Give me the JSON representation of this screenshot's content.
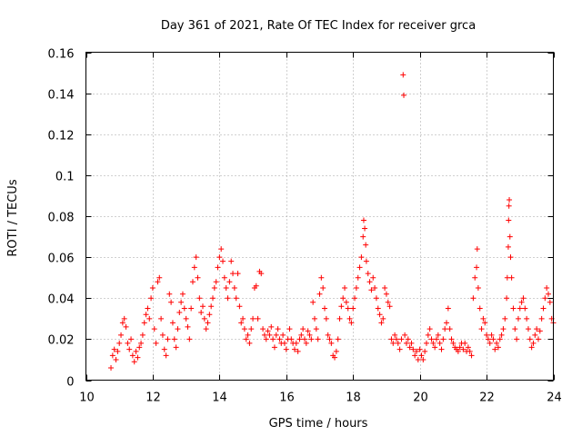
{
  "chart_data": {
    "type": "scatter",
    "title": "Day 361 of 2021, Rate Of TEC Index for receiver grca",
    "xlabel": "GPS time / hours",
    "ylabel": "ROTI / TECUs",
    "xlim": [
      10,
      24
    ],
    "ylim": [
      0,
      0.16
    ],
    "x_ticks": [
      10,
      12,
      14,
      16,
      18,
      20,
      22,
      24
    ],
    "x_tick_labels": [
      "10",
      "12",
      "14",
      "16",
      "18",
      "20",
      "22",
      "24"
    ],
    "y_ticks": [
      0,
      0.02,
      0.04,
      0.06,
      0.08,
      0.1,
      0.12,
      0.14,
      0.16
    ],
    "y_tick_labels": [
      "0",
      "0.02",
      "0.04",
      "0.06",
      "0.08",
      "0.1",
      "0.12",
      "0.14",
      "0.16"
    ],
    "grid": true,
    "marker": "+",
    "marker_color": "#ff0000",
    "series": [
      {
        "points": [
          [
            10.75,
            0.006
          ],
          [
            10.8,
            0.012
          ],
          [
            10.85,
            0.015
          ],
          [
            10.9,
            0.01
          ],
          [
            10.95,
            0.014
          ],
          [
            11.0,
            0.018
          ],
          [
            11.05,
            0.022
          ],
          [
            11.1,
            0.028
          ],
          [
            11.15,
            0.03
          ],
          [
            11.2,
            0.026
          ],
          [
            11.25,
            0.018
          ],
          [
            11.3,
            0.015
          ],
          [
            11.35,
            0.02
          ],
          [
            11.4,
            0.012
          ],
          [
            11.45,
            0.009
          ],
          [
            11.5,
            0.014
          ],
          [
            11.55,
            0.011
          ],
          [
            11.6,
            0.016
          ],
          [
            11.65,
            0.018
          ],
          [
            11.7,
            0.022
          ],
          [
            11.75,
            0.028
          ],
          [
            11.8,
            0.032
          ],
          [
            11.85,
            0.035
          ],
          [
            11.9,
            0.03
          ],
          [
            11.95,
            0.04
          ],
          [
            12.0,
            0.045
          ],
          [
            12.05,
            0.025
          ],
          [
            12.1,
            0.018
          ],
          [
            12.15,
            0.048
          ],
          [
            12.2,
            0.05
          ],
          [
            12.25,
            0.03
          ],
          [
            12.3,
            0.022
          ],
          [
            12.35,
            0.015
          ],
          [
            12.4,
            0.012
          ],
          [
            12.45,
            0.02
          ],
          [
            12.5,
            0.042
          ],
          [
            12.55,
            0.038
          ],
          [
            12.6,
            0.028
          ],
          [
            12.65,
            0.02
          ],
          [
            12.7,
            0.016
          ],
          [
            12.75,
            0.025
          ],
          [
            12.8,
            0.033
          ],
          [
            12.85,
            0.038
          ],
          [
            12.9,
            0.042
          ],
          [
            12.95,
            0.035
          ],
          [
            13.0,
            0.03
          ],
          [
            13.05,
            0.026
          ],
          [
            13.1,
            0.02
          ],
          [
            13.15,
            0.035
          ],
          [
            13.2,
            0.048
          ],
          [
            13.25,
            0.055
          ],
          [
            13.3,
            0.06
          ],
          [
            13.35,
            0.05
          ],
          [
            13.4,
            0.04
          ],
          [
            13.45,
            0.033
          ],
          [
            13.5,
            0.036
          ],
          [
            13.55,
            0.03
          ],
          [
            13.6,
            0.025
          ],
          [
            13.65,
            0.028
          ],
          [
            13.7,
            0.032
          ],
          [
            13.75,
            0.036
          ],
          [
            13.8,
            0.04
          ],
          [
            13.85,
            0.045
          ],
          [
            13.9,
            0.048
          ],
          [
            13.95,
            0.055
          ],
          [
            14.0,
            0.06
          ],
          [
            14.05,
            0.064
          ],
          [
            14.1,
            0.058
          ],
          [
            14.15,
            0.05
          ],
          [
            14.2,
            0.045
          ],
          [
            14.25,
            0.04
          ],
          [
            14.3,
            0.048
          ],
          [
            14.35,
            0.058
          ],
          [
            14.4,
            0.052
          ],
          [
            14.45,
            0.045
          ],
          [
            14.5,
            0.04
          ],
          [
            14.55,
            0.052
          ],
          [
            14.6,
            0.036
          ],
          [
            14.65,
            0.028
          ],
          [
            14.7,
            0.03
          ],
          [
            14.75,
            0.025
          ],
          [
            14.8,
            0.02
          ],
          [
            14.85,
            0.022
          ],
          [
            14.9,
            0.018
          ],
          [
            14.95,
            0.025
          ],
          [
            15.0,
            0.03
          ],
          [
            15.05,
            0.045
          ],
          [
            15.1,
            0.046
          ],
          [
            15.15,
            0.03
          ],
          [
            15.2,
            0.053
          ],
          [
            15.25,
            0.052
          ],
          [
            15.3,
            0.025
          ],
          [
            15.35,
            0.022
          ],
          [
            15.4,
            0.02
          ],
          [
            15.45,
            0.024
          ],
          [
            15.5,
            0.022
          ],
          [
            15.55,
            0.026
          ],
          [
            15.6,
            0.02
          ],
          [
            15.65,
            0.016
          ],
          [
            15.7,
            0.022
          ],
          [
            15.75,
            0.025
          ],
          [
            15.8,
            0.02
          ],
          [
            15.85,
            0.018
          ],
          [
            15.9,
            0.022
          ],
          [
            15.95,
            0.018
          ],
          [
            16.0,
            0.015
          ],
          [
            16.05,
            0.02
          ],
          [
            16.1,
            0.025
          ],
          [
            16.15,
            0.02
          ],
          [
            16.2,
            0.018
          ],
          [
            16.25,
            0.015
          ],
          [
            16.3,
            0.018
          ],
          [
            16.35,
            0.014
          ],
          [
            16.4,
            0.02
          ],
          [
            16.45,
            0.022
          ],
          [
            16.5,
            0.025
          ],
          [
            16.55,
            0.02
          ],
          [
            16.6,
            0.018
          ],
          [
            16.65,
            0.024
          ],
          [
            16.7,
            0.022
          ],
          [
            16.75,
            0.02
          ],
          [
            16.8,
            0.038
          ],
          [
            16.85,
            0.03
          ],
          [
            16.9,
            0.025
          ],
          [
            16.95,
            0.02
          ],
          [
            17.0,
            0.042
          ],
          [
            17.05,
            0.05
          ],
          [
            17.1,
            0.045
          ],
          [
            17.15,
            0.035
          ],
          [
            17.2,
            0.03
          ],
          [
            17.25,
            0.022
          ],
          [
            17.3,
            0.02
          ],
          [
            17.35,
            0.018
          ],
          [
            17.4,
            0.012
          ],
          [
            17.45,
            0.011
          ],
          [
            17.5,
            0.014
          ],
          [
            17.55,
            0.02
          ],
          [
            17.6,
            0.03
          ],
          [
            17.65,
            0.036
          ],
          [
            17.7,
            0.04
          ],
          [
            17.75,
            0.045
          ],
          [
            17.8,
            0.038
          ],
          [
            17.85,
            0.035
          ],
          [
            17.9,
            0.03
          ],
          [
            17.95,
            0.028
          ],
          [
            18.0,
            0.035
          ],
          [
            18.05,
            0.04
          ],
          [
            18.1,
            0.045
          ],
          [
            18.15,
            0.05
          ],
          [
            18.2,
            0.055
          ],
          [
            18.25,
            0.06
          ],
          [
            18.3,
            0.07
          ],
          [
            18.32,
            0.078
          ],
          [
            18.35,
            0.074
          ],
          [
            18.38,
            0.066
          ],
          [
            18.4,
            0.058
          ],
          [
            18.45,
            0.052
          ],
          [
            18.5,
            0.048
          ],
          [
            18.55,
            0.044
          ],
          [
            18.6,
            0.05
          ],
          [
            18.65,
            0.045
          ],
          [
            18.7,
            0.04
          ],
          [
            18.75,
            0.035
          ],
          [
            18.8,
            0.032
          ],
          [
            18.85,
            0.028
          ],
          [
            18.9,
            0.03
          ],
          [
            18.95,
            0.045
          ],
          [
            19.0,
            0.042
          ],
          [
            19.05,
            0.038
          ],
          [
            19.1,
            0.036
          ],
          [
            19.15,
            0.02
          ],
          [
            19.2,
            0.018
          ],
          [
            19.25,
            0.022
          ],
          [
            19.3,
            0.02
          ],
          [
            19.35,
            0.018
          ],
          [
            19.4,
            0.015
          ],
          [
            19.45,
            0.02
          ],
          [
            19.5,
            0.149
          ],
          [
            19.52,
            0.139
          ],
          [
            19.55,
            0.022
          ],
          [
            19.6,
            0.018
          ],
          [
            19.65,
            0.02
          ],
          [
            19.7,
            0.016
          ],
          [
            19.75,
            0.018
          ],
          [
            19.8,
            0.015
          ],
          [
            19.85,
            0.012
          ],
          [
            19.9,
            0.014
          ],
          [
            19.95,
            0.01
          ],
          [
            20.0,
            0.015
          ],
          [
            20.05,
            0.012
          ],
          [
            20.1,
            0.01
          ],
          [
            20.15,
            0.014
          ],
          [
            20.2,
            0.018
          ],
          [
            20.25,
            0.022
          ],
          [
            20.3,
            0.025
          ],
          [
            20.35,
            0.02
          ],
          [
            20.4,
            0.018
          ],
          [
            20.45,
            0.016
          ],
          [
            20.5,
            0.02
          ],
          [
            20.55,
            0.022
          ],
          [
            20.6,
            0.018
          ],
          [
            20.65,
            0.015
          ],
          [
            20.7,
            0.02
          ],
          [
            20.75,
            0.025
          ],
          [
            20.8,
            0.028
          ],
          [
            20.85,
            0.035
          ],
          [
            20.9,
            0.025
          ],
          [
            20.95,
            0.02
          ],
          [
            21.0,
            0.018
          ],
          [
            21.05,
            0.016
          ],
          [
            21.1,
            0.015
          ],
          [
            21.15,
            0.014
          ],
          [
            21.2,
            0.016
          ],
          [
            21.25,
            0.018
          ],
          [
            21.3,
            0.015
          ],
          [
            21.35,
            0.018
          ],
          [
            21.4,
            0.014
          ],
          [
            21.45,
            0.016
          ],
          [
            21.5,
            0.014
          ],
          [
            21.55,
            0.012
          ],
          [
            21.6,
            0.04
          ],
          [
            21.65,
            0.05
          ],
          [
            21.7,
            0.055
          ],
          [
            21.72,
            0.064
          ],
          [
            21.75,
            0.045
          ],
          [
            21.8,
            0.035
          ],
          [
            21.85,
            0.025
          ],
          [
            21.9,
            0.03
          ],
          [
            21.95,
            0.028
          ],
          [
            22.0,
            0.022
          ],
          [
            22.05,
            0.02
          ],
          [
            22.1,
            0.018
          ],
          [
            22.15,
            0.022
          ],
          [
            22.2,
            0.02
          ],
          [
            22.25,
            0.015
          ],
          [
            22.3,
            0.018
          ],
          [
            22.35,
            0.016
          ],
          [
            22.4,
            0.02
          ],
          [
            22.45,
            0.022
          ],
          [
            22.5,
            0.025
          ],
          [
            22.55,
            0.03
          ],
          [
            22.6,
            0.04
          ],
          [
            22.62,
            0.05
          ],
          [
            22.65,
            0.065
          ],
          [
            22.66,
            0.078
          ],
          [
            22.67,
            0.085
          ],
          [
            22.68,
            0.088
          ],
          [
            22.7,
            0.07
          ],
          [
            22.72,
            0.06
          ],
          [
            22.75,
            0.05
          ],
          [
            22.8,
            0.035
          ],
          [
            22.85,
            0.025
          ],
          [
            22.9,
            0.02
          ],
          [
            22.95,
            0.03
          ],
          [
            23.0,
            0.035
          ],
          [
            23.05,
            0.038
          ],
          [
            23.1,
            0.04
          ],
          [
            23.15,
            0.035
          ],
          [
            23.2,
            0.03
          ],
          [
            23.25,
            0.025
          ],
          [
            23.3,
            0.02
          ],
          [
            23.35,
            0.016
          ],
          [
            23.4,
            0.018
          ],
          [
            23.45,
            0.022
          ],
          [
            23.5,
            0.025
          ],
          [
            23.55,
            0.02
          ],
          [
            23.6,
            0.024
          ],
          [
            23.65,
            0.03
          ],
          [
            23.7,
            0.035
          ],
          [
            23.75,
            0.04
          ],
          [
            23.8,
            0.045
          ],
          [
            23.85,
            0.042
          ],
          [
            23.9,
            0.038
          ],
          [
            23.95,
            0.03
          ],
          [
            24.0,
            0.028
          ]
        ]
      }
    ]
  }
}
